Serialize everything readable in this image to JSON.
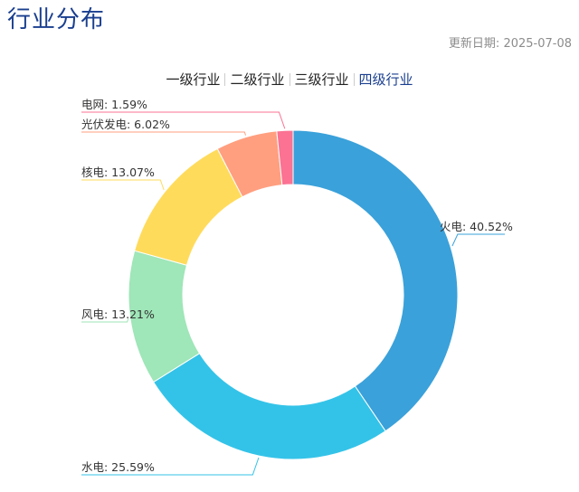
{
  "header": {
    "title": "行业分布",
    "update_label": "更新日期:",
    "update_date": "2025-07-08"
  },
  "tabs": [
    {
      "label": "一级行业",
      "active": false
    },
    {
      "label": "二级行业",
      "active": false
    },
    {
      "label": "三级行业",
      "active": false
    },
    {
      "label": "四级行业",
      "active": true
    }
  ],
  "chart_data": {
    "type": "pie",
    "variant": "donut",
    "title": "",
    "categories": [
      "火电",
      "水电",
      "风电",
      "核电",
      "光伏发电",
      "电网"
    ],
    "values": [
      40.52,
      25.59,
      13.21,
      13.07,
      6.02,
      1.59
    ],
    "unit": "%",
    "labels": [
      "火电: 40.52%",
      "水电: 25.59%",
      "风电: 13.21%",
      "核电: 13.07%",
      "光伏发电: 6.02%",
      "电网: 1.59%"
    ],
    "colors": [
      "#3aa1da",
      "#34c3e8",
      "#9fe6b8",
      "#ffdb5c",
      "#ff9f7f",
      "#fb7293"
    ],
    "start": "12 o'clock",
    "direction": "clockwise",
    "legend": "none"
  }
}
